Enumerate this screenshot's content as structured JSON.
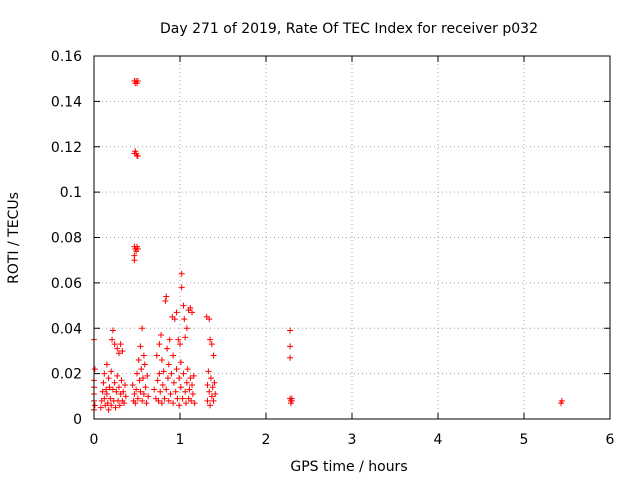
{
  "chart_data": {
    "type": "scatter",
    "title": "Day 271 of 2019, Rate Of TEC Index for receiver p032",
    "xlabel": "GPS time / hours",
    "ylabel": "ROTI / TECUs",
    "xlim": [
      0,
      6
    ],
    "ylim": [
      0,
      0.16
    ],
    "x_ticks": [
      "0",
      "1",
      "2",
      "3",
      "4",
      "5",
      "6"
    ],
    "y_ticks": [
      "0",
      "0.02",
      "0.04",
      "0.06",
      "0.08",
      "0.1",
      "0.12",
      "0.14",
      "0.16"
    ],
    "grid": true,
    "marker": "+",
    "color": "#ff0000",
    "points": [
      [
        0.0,
        0.035
      ],
      [
        0.0,
        0.017
      ],
      [
        0.0,
        0.014
      ],
      [
        0.0,
        0.011
      ],
      [
        0.0,
        0.008
      ],
      [
        0.0,
        0.004
      ],
      [
        0.01,
        0.022
      ],
      [
        0.01,
        0.006
      ],
      [
        0.08,
        0.005
      ],
      [
        0.09,
        0.008
      ],
      [
        0.1,
        0.012
      ],
      [
        0.11,
        0.016
      ],
      [
        0.12,
        0.02
      ],
      [
        0.12,
        0.009
      ],
      [
        0.13,
        0.006
      ],
      [
        0.14,
        0.013
      ],
      [
        0.15,
        0.024
      ],
      [
        0.15,
        0.011
      ],
      [
        0.16,
        0.007
      ],
      [
        0.17,
        0.018
      ],
      [
        0.17,
        0.004
      ],
      [
        0.18,
        0.014
      ],
      [
        0.19,
        0.009
      ],
      [
        0.2,
        0.021
      ],
      [
        0.2,
        0.006
      ],
      [
        0.21,
        0.035
      ],
      [
        0.22,
        0.039
      ],
      [
        0.22,
        0.013
      ],
      [
        0.23,
        0.008
      ],
      [
        0.24,
        0.033
      ],
      [
        0.24,
        0.016
      ],
      [
        0.25,
        0.005
      ],
      [
        0.26,
        0.012
      ],
      [
        0.27,
        0.031
      ],
      [
        0.27,
        0.019
      ],
      [
        0.28,
        0.008
      ],
      [
        0.29,
        0.029
      ],
      [
        0.29,
        0.014
      ],
      [
        0.3,
        0.006
      ],
      [
        0.31,
        0.033
      ],
      [
        0.31,
        0.011
      ],
      [
        0.32,
        0.017
      ],
      [
        0.33,
        0.008
      ],
      [
        0.33,
        0.03
      ],
      [
        0.34,
        0.012
      ],
      [
        0.35,
        0.007
      ],
      [
        0.36,
        0.015
      ],
      [
        0.37,
        0.01
      ],
      [
        0.47,
        0.149
      ],
      [
        0.48,
        0.148
      ],
      [
        0.49,
        0.149
      ],
      [
        0.5,
        0.148
      ],
      [
        0.51,
        0.149
      ],
      [
        0.47,
        0.117
      ],
      [
        0.48,
        0.118
      ],
      [
        0.49,
        0.117
      ],
      [
        0.5,
        0.116
      ],
      [
        0.51,
        0.116
      ],
      [
        0.47,
        0.076
      ],
      [
        0.48,
        0.075
      ],
      [
        0.49,
        0.074
      ],
      [
        0.5,
        0.076
      ],
      [
        0.51,
        0.075
      ],
      [
        0.47,
        0.072
      ],
      [
        0.47,
        0.07
      ],
      [
        0.45,
        0.015
      ],
      [
        0.46,
        0.008
      ],
      [
        0.47,
        0.011
      ],
      [
        0.48,
        0.007
      ],
      [
        0.49,
        0.013
      ],
      [
        0.5,
        0.02
      ],
      [
        0.51,
        0.009
      ],
      [
        0.52,
        0.026
      ],
      [
        0.53,
        0.017
      ],
      [
        0.54,
        0.032
      ],
      [
        0.54,
        0.012
      ],
      [
        0.55,
        0.022
      ],
      [
        0.56,
        0.04
      ],
      [
        0.56,
        0.008
      ],
      [
        0.57,
        0.018
      ],
      [
        0.58,
        0.028
      ],
      [
        0.58,
        0.011
      ],
      [
        0.59,
        0.024
      ],
      [
        0.6,
        0.014
      ],
      [
        0.61,
        0.007
      ],
      [
        0.62,
        0.019
      ],
      [
        0.63,
        0.01
      ],
      [
        0.7,
        0.013
      ],
      [
        0.72,
        0.009
      ],
      [
        0.73,
        0.028
      ],
      [
        0.74,
        0.017
      ],
      [
        0.75,
        0.008
      ],
      [
        0.76,
        0.033
      ],
      [
        0.76,
        0.02
      ],
      [
        0.77,
        0.012
      ],
      [
        0.78,
        0.037
      ],
      [
        0.79,
        0.007
      ],
      [
        0.79,
        0.026
      ],
      [
        0.8,
        0.015
      ],
      [
        0.81,
        0.021
      ],
      [
        0.82,
        0.009
      ],
      [
        0.83,
        0.052
      ],
      [
        0.84,
        0.054
      ],
      [
        0.84,
        0.013
      ],
      [
        0.85,
        0.031
      ],
      [
        0.86,
        0.018
      ],
      [
        0.87,
        0.008
      ],
      [
        0.87,
        0.024
      ],
      [
        0.88,
        0.035
      ],
      [
        0.89,
        0.011
      ],
      [
        0.9,
        0.02
      ],
      [
        0.91,
        0.045
      ],
      [
        0.92,
        0.028
      ],
      [
        0.92,
        0.007
      ],
      [
        0.93,
        0.016
      ],
      [
        0.94,
        0.044
      ],
      [
        0.95,
        0.012
      ],
      [
        0.96,
        0.047
      ],
      [
        0.96,
        0.022
      ],
      [
        0.97,
        0.009
      ],
      [
        0.98,
        0.035
      ],
      [
        0.99,
        0.018
      ],
      [
        0.99,
        0.006
      ],
      [
        1.0,
        0.033
      ],
      [
        1.01,
        0.014
      ],
      [
        1.01,
        0.025
      ],
      [
        1.02,
        0.064
      ],
      [
        1.02,
        0.058
      ],
      [
        1.03,
        0.009
      ],
      [
        1.04,
        0.05
      ],
      [
        1.04,
        0.02
      ],
      [
        1.05,
        0.044
      ],
      [
        1.06,
        0.012
      ],
      [
        1.06,
        0.036
      ],
      [
        1.07,
        0.007
      ],
      [
        1.08,
        0.04
      ],
      [
        1.08,
        0.016
      ],
      [
        1.09,
        0.022
      ],
      [
        1.1,
        0.009
      ],
      [
        1.1,
        0.048
      ],
      [
        1.11,
        0.013
      ],
      [
        1.12,
        0.049
      ],
      [
        1.12,
        0.018
      ],
      [
        1.13,
        0.008
      ],
      [
        1.14,
        0.047
      ],
      [
        1.14,
        0.015
      ],
      [
        1.15,
        0.011
      ],
      [
        1.16,
        0.019
      ],
      [
        1.17,
        0.007
      ],
      [
        1.31,
        0.045
      ],
      [
        1.32,
        0.015
      ],
      [
        1.32,
        0.008
      ],
      [
        1.33,
        0.021
      ],
      [
        1.34,
        0.044
      ],
      [
        1.34,
        0.012
      ],
      [
        1.35,
        0.035
      ],
      [
        1.35,
        0.006
      ],
      [
        1.36,
        0.018
      ],
      [
        1.37,
        0.033
      ],
      [
        1.37,
        0.01
      ],
      [
        1.38,
        0.014
      ],
      [
        1.39,
        0.028
      ],
      [
        1.39,
        0.008
      ],
      [
        1.4,
        0.016
      ],
      [
        1.41,
        0.011
      ],
      [
        2.28,
        0.039
      ],
      [
        2.28,
        0.032
      ],
      [
        2.28,
        0.027
      ],
      [
        2.28,
        0.009
      ],
      [
        2.29,
        0.008
      ],
      [
        2.29,
        0.007
      ],
      [
        2.3,
        0.009
      ],
      [
        2.3,
        0.008
      ],
      [
        5.43,
        0.007
      ],
      [
        5.44,
        0.008
      ]
    ]
  }
}
